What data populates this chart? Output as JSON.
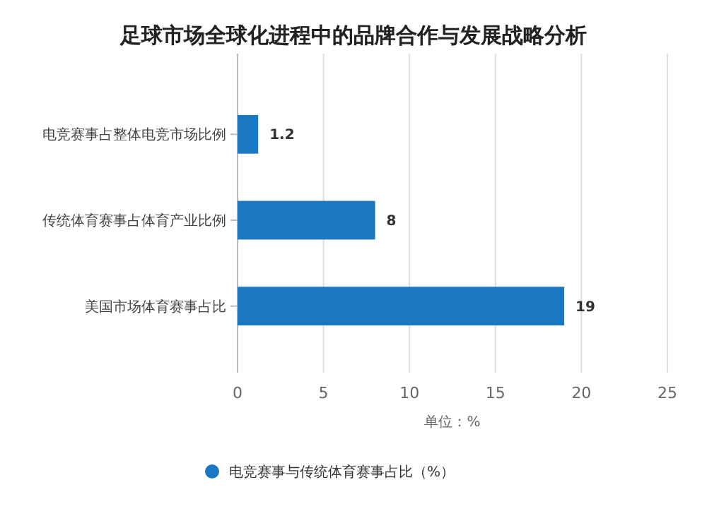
{
  "chart_data": {
    "type": "bar",
    "orientation": "horizontal",
    "title": "足球市场全球化进程中的品牌合作与发展战略分析",
    "categories": [
      "电竞赛事占整体电竞市场比例",
      "传统体育赛事占体育产业比例",
      "美国市场体育赛事占比"
    ],
    "series": [
      {
        "name": "电竞赛事与传统体育赛事占比（%）",
        "color": "#1a78c2",
        "values": [
          1.2,
          8,
          19
        ]
      }
    ],
    "xlim": [
      0,
      25
    ],
    "xticks": [
      0,
      5,
      10,
      15,
      20,
      25
    ],
    "xlabel": "单位：%",
    "grid": "x",
    "data_labels": true,
    "legend": "bottom"
  }
}
